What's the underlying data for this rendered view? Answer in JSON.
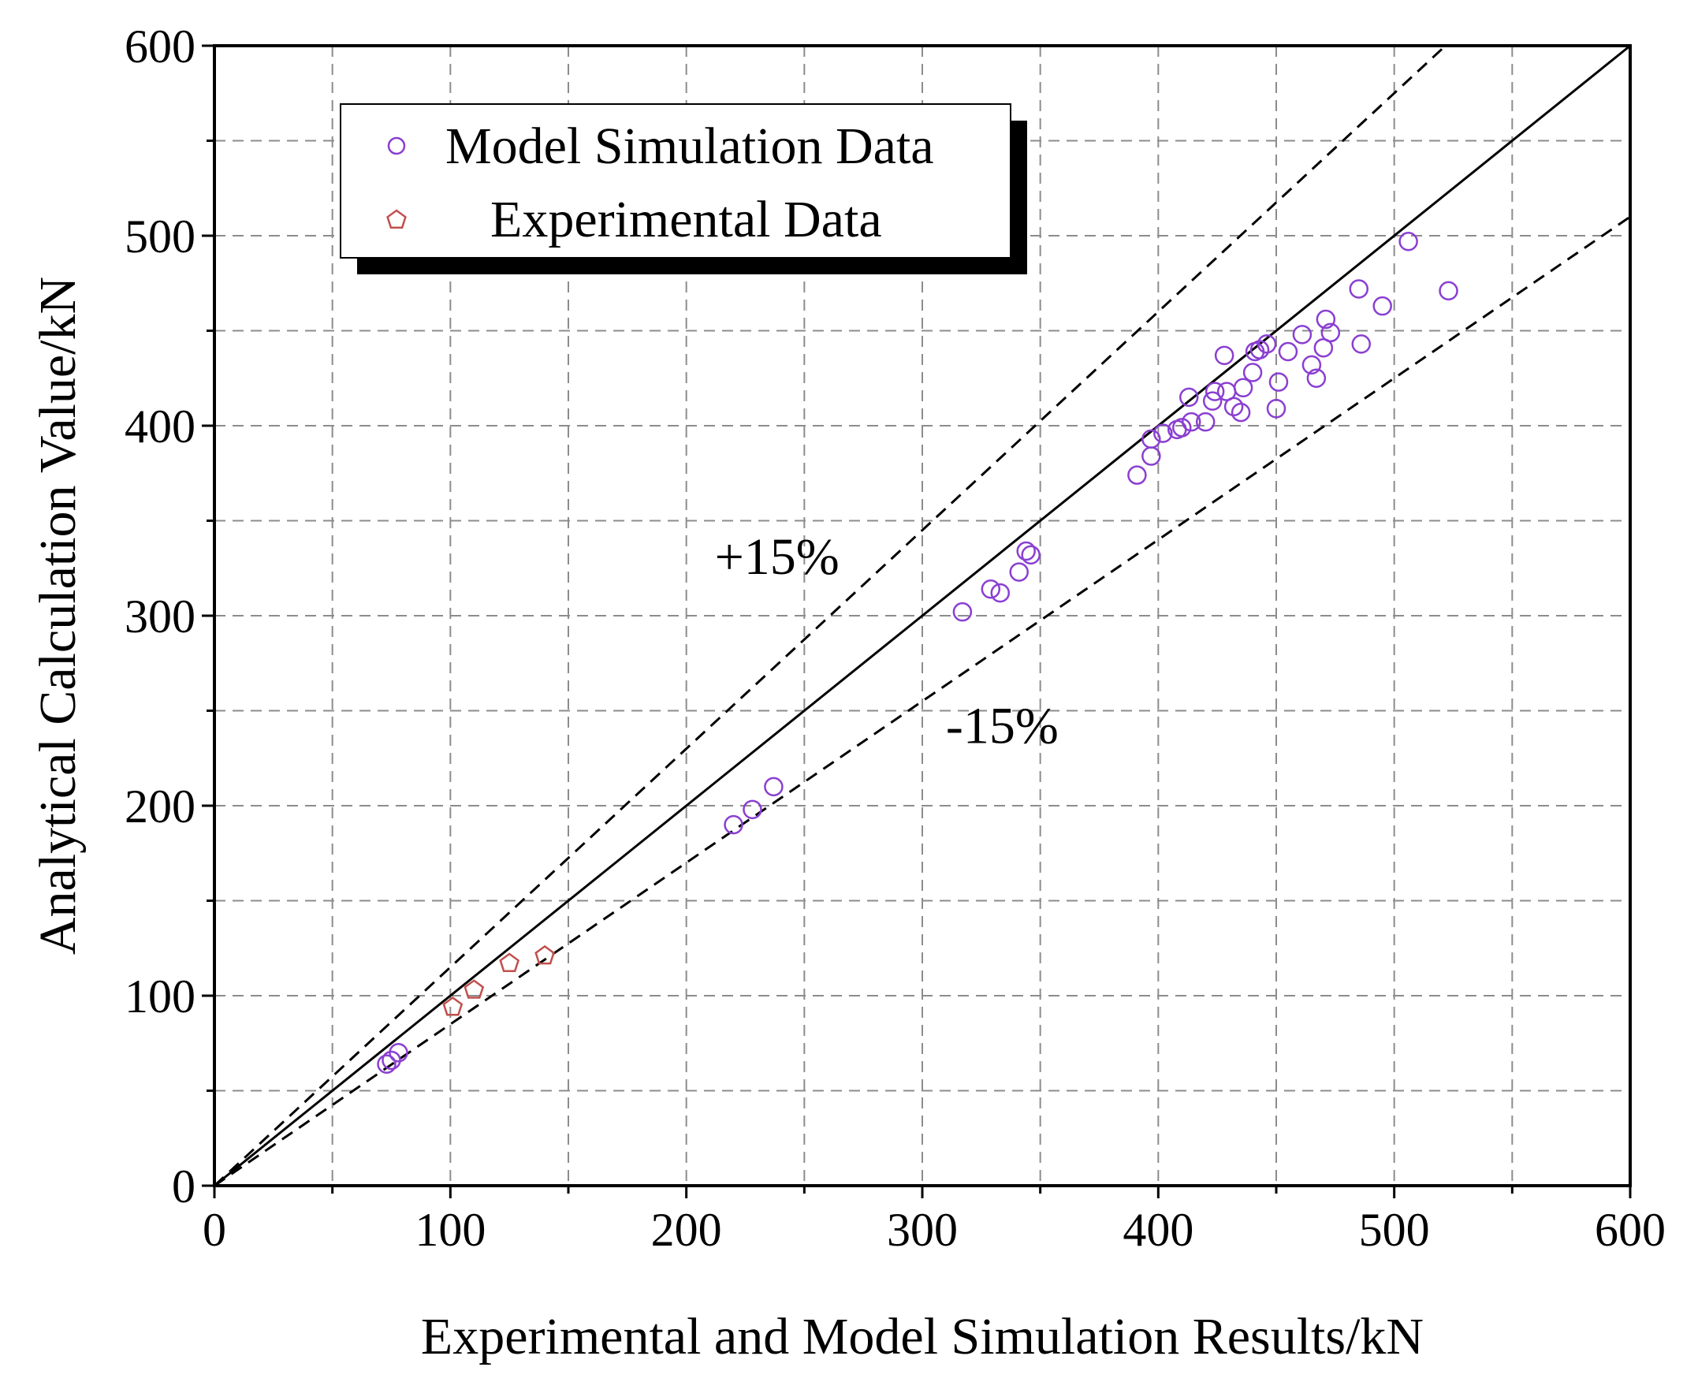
{
  "chart_data": {
    "type": "scatter",
    "xlabel": "Experimental and Model Simulation Results/kN",
    "ylabel": "Analytical Calculation Value/kN",
    "xlim": [
      0,
      600
    ],
    "ylim": [
      0,
      600
    ],
    "x_ticks": [
      "0",
      "100",
      "200",
      "300",
      "400",
      "500",
      "600"
    ],
    "y_ticks": [
      "0",
      "100",
      "200",
      "300",
      "400",
      "500",
      "600"
    ],
    "grid": true,
    "legend_position": "top-left",
    "series": [
      {
        "name": "Model Simulation Data",
        "marker": "circle",
        "color": "#8a3fd1",
        "points": [
          [
            73,
            64
          ],
          [
            75,
            66
          ],
          [
            78,
            70
          ],
          [
            220,
            190
          ],
          [
            228,
            198
          ],
          [
            237,
            210
          ],
          [
            317,
            302
          ],
          [
            329,
            314
          ],
          [
            333,
            312
          ],
          [
            341,
            323
          ],
          [
            344,
            334
          ],
          [
            346,
            332
          ],
          [
            391,
            374
          ],
          [
            397,
            384
          ],
          [
            397,
            393
          ],
          [
            402,
            396
          ],
          [
            408,
            398
          ],
          [
            410,
            399
          ],
          [
            413,
            415
          ],
          [
            414,
            402
          ],
          [
            420,
            402
          ],
          [
            423,
            413
          ],
          [
            424,
            418
          ],
          [
            428,
            437
          ],
          [
            429,
            418
          ],
          [
            432,
            410
          ],
          [
            435,
            407
          ],
          [
            436,
            420
          ],
          [
            440,
            428
          ],
          [
            441,
            439
          ],
          [
            443,
            440
          ],
          [
            446,
            443
          ],
          [
            450,
            409
          ],
          [
            451,
            423
          ],
          [
            455,
            439
          ],
          [
            461,
            448
          ],
          [
            465,
            432
          ],
          [
            467,
            425
          ],
          [
            470,
            441
          ],
          [
            471,
            456
          ],
          [
            473,
            449
          ],
          [
            485,
            472
          ],
          [
            486,
            443
          ],
          [
            495,
            463
          ],
          [
            506,
            497
          ],
          [
            523,
            471
          ]
        ]
      },
      {
        "name": "Experimental Data",
        "marker": "pentagon",
        "color": "#c0504d",
        "points": [
          [
            101,
            94
          ],
          [
            110,
            103
          ],
          [
            125,
            117
          ],
          [
            140,
            121
          ]
        ]
      }
    ],
    "reference_lines": [
      {
        "slope": 1.0,
        "style": "solid"
      },
      {
        "slope": 1.15,
        "style": "dashed"
      },
      {
        "slope": 0.85,
        "style": "dashed"
      }
    ],
    "annotations": [
      {
        "text": "+15%",
        "x": 212,
        "y": 322
      },
      {
        "text": "-15%",
        "x": 310,
        "y": 233
      }
    ]
  }
}
